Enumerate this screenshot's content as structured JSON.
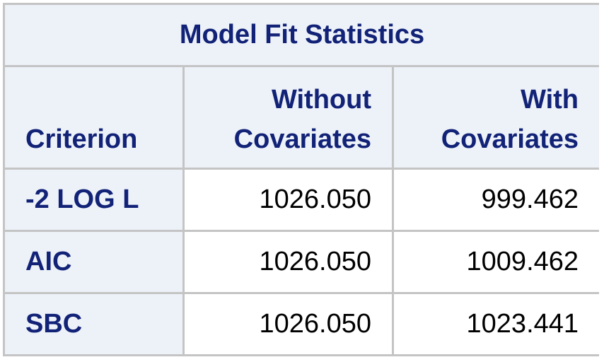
{
  "table": {
    "title": "Model Fit Statistics",
    "headers": {
      "criterion": "Criterion",
      "without_line1": "Without",
      "without_line2": "Covariates",
      "with_line1": "With",
      "with_line2": "Covariates"
    },
    "rows": [
      {
        "criterion": "-2 LOG L",
        "without": "1026.050",
        "with": "999.462"
      },
      {
        "criterion": "AIC",
        "without": "1026.050",
        "with": "1009.462"
      },
      {
        "criterion": "SBC",
        "without": "1026.050",
        "with": "1023.441"
      }
    ],
    "colors": {
      "header_bg": "#edf1f8",
      "header_text": "#112277",
      "grid": "#c4c4c4"
    }
  }
}
